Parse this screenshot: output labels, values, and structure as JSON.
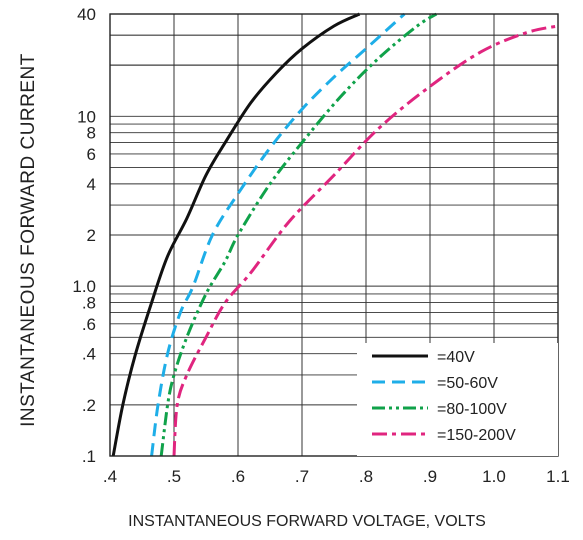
{
  "chart_data": {
    "type": "line",
    "title": "",
    "xlabel": "INSTANTANEOUS FORWARD VOLTAGE, VOLTS",
    "ylabel": "INSTANTANEOUS FORWARD CURRENT",
    "xlim": [
      0.4,
      1.1
    ],
    "ylim": [
      0.1,
      40
    ],
    "y_scale": "log",
    "grid": true,
    "legend_position": "bottom-right",
    "x_ticks": [
      0.4,
      0.5,
      0.6,
      0.7,
      0.8,
      0.9,
      1.0,
      1.1
    ],
    "x_tick_labels": [
      ".4",
      ".5",
      ".6",
      ".7",
      ".8",
      ".9",
      "1.0",
      "1.1"
    ],
    "y_ticks": [
      0.1,
      0.2,
      0.4,
      0.6,
      0.8,
      1.0,
      2,
      4,
      6,
      8,
      10,
      40
    ],
    "y_tick_labels": [
      ".1",
      ".2",
      ".4",
      ".6",
      ".8",
      "1.0",
      "2",
      "4",
      "6",
      "8",
      "10",
      "40"
    ],
    "series": [
      {
        "name": "=40V",
        "color": "#111111",
        "dash": "solid",
        "points": [
          [
            0.405,
            0.1
          ],
          [
            0.42,
            0.2
          ],
          [
            0.44,
            0.4
          ],
          [
            0.465,
            0.8
          ],
          [
            0.49,
            1.5
          ],
          [
            0.52,
            2.5
          ],
          [
            0.55,
            4.5
          ],
          [
            0.58,
            7
          ],
          [
            0.62,
            12
          ],
          [
            0.66,
            18
          ],
          [
            0.7,
            25
          ],
          [
            0.75,
            34
          ],
          [
            0.79,
            40
          ]
        ]
      },
      {
        "name": "=50-60V",
        "color": "#1eaee8",
        "dash": "dash",
        "points": [
          [
            0.465,
            0.1
          ],
          [
            0.475,
            0.2
          ],
          [
            0.49,
            0.4
          ],
          [
            0.51,
            0.7
          ],
          [
            0.53,
            1.0
          ],
          [
            0.56,
            2.0
          ],
          [
            0.6,
            3.5
          ],
          [
            0.65,
            6.5
          ],
          [
            0.7,
            11
          ],
          [
            0.75,
            17
          ],
          [
            0.8,
            25
          ],
          [
            0.86,
            40
          ]
        ]
      },
      {
        "name": "=80-100V",
        "color": "#10a24a",
        "dash": "dash-dot-dot",
        "points": [
          [
            0.48,
            0.1
          ],
          [
            0.49,
            0.2
          ],
          [
            0.5,
            0.3
          ],
          [
            0.52,
            0.5
          ],
          [
            0.55,
            0.9
          ],
          [
            0.58,
            1.4
          ],
          [
            0.6,
            2.0
          ],
          [
            0.65,
            4.0
          ],
          [
            0.7,
            7.0
          ],
          [
            0.76,
            13
          ],
          [
            0.82,
            22
          ],
          [
            0.88,
            34
          ],
          [
            0.91,
            40
          ]
        ]
      },
      {
        "name": "=150-200V",
        "color": "#e0257f",
        "dash": "dash-dot",
        "points": [
          [
            0.5,
            0.1
          ],
          [
            0.505,
            0.2
          ],
          [
            0.52,
            0.3
          ],
          [
            0.55,
            0.5
          ],
          [
            0.58,
            0.8
          ],
          [
            0.62,
            1.2
          ],
          [
            0.68,
            2.4
          ],
          [
            0.75,
            4.5
          ],
          [
            0.82,
            8.5
          ],
          [
            0.9,
            15
          ],
          [
            0.98,
            24
          ],
          [
            1.05,
            31
          ],
          [
            1.1,
            34
          ]
        ]
      }
    ]
  }
}
